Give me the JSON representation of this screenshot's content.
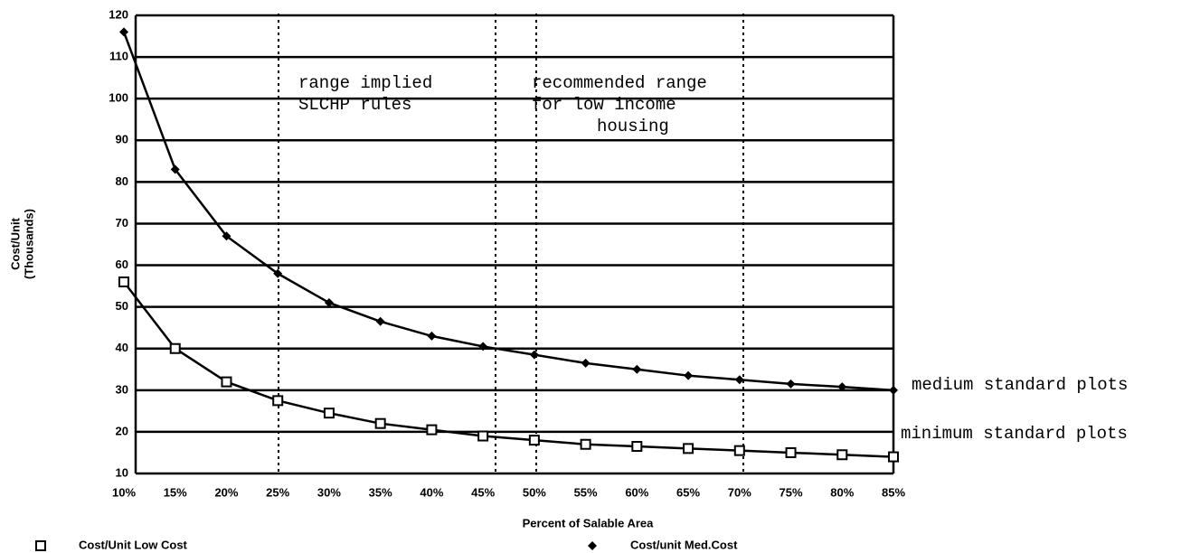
{
  "chart_data": {
    "type": "line",
    "y_label": [
      "Cost/Unit",
      "(Thousands)"
    ],
    "x_label": "Percent of Salable Area",
    "categories": [
      "10%",
      "15%",
      "20%",
      "25%",
      "30%",
      "35%",
      "40%",
      "45%",
      "50%",
      "55%",
      "60%",
      "65%",
      "70%",
      "75%",
      "80%",
      "85%"
    ],
    "series": [
      {
        "name": "Cost/Unit Low Cost",
        "color": "#000000",
        "marker": "square",
        "values": [
          56,
          40,
          32,
          27.5,
          24.5,
          22,
          20.5,
          19,
          18,
          17,
          16.5,
          16,
          15.5,
          15,
          14.5,
          14
        ]
      },
      {
        "name": "Cost/unit Med.Cost",
        "color": "#000000",
        "marker": "diamond",
        "values": [
          116,
          83,
          67,
          58,
          51,
          46.5,
          43,
          40.5,
          38.5,
          36.5,
          35,
          33.5,
          32.5,
          31.5,
          30.8,
          30
        ]
      }
    ],
    "ylim": [
      10,
      120
    ],
    "yticks": [
      10,
      20,
      30,
      40,
      50,
      60,
      70,
      80,
      90,
      100,
      110,
      120
    ],
    "grid": true,
    "annotations": {
      "range_implied": [
        "range implied",
        "SLCHP rules"
      ],
      "recommended": [
        "recommended range",
        "for low income",
        "housing"
      ],
      "medium": "medium standard plots",
      "minimum": "minimum standard plots"
    }
  }
}
